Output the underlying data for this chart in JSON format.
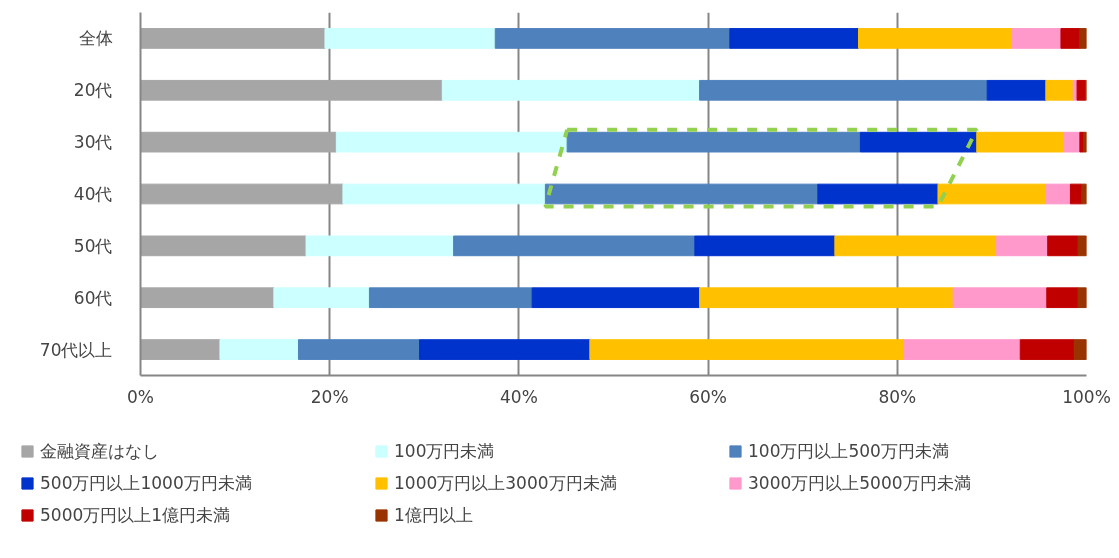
{
  "chart_data": {
    "type": "bar",
    "orientation": "horizontal",
    "stacked": true,
    "categories": [
      "全体",
      "20代",
      "30代",
      "40代",
      "50代",
      "60代",
      "70代以上"
    ],
    "series": [
      {
        "name": "金融資産はなし",
        "color": "#a6a6a6",
        "values": [
          19.5,
          31.9,
          20.7,
          21.4,
          17.5,
          14.1,
          8.4
        ]
      },
      {
        "name": "100万円未満",
        "color": "#ccffff",
        "values": [
          18.0,
          27.2,
          24.4,
          21.4,
          15.6,
          10.1,
          8.3
        ]
      },
      {
        "name": "100万円以上500万円未満",
        "color": "#4f81bd",
        "values": [
          24.8,
          30.4,
          31.0,
          28.8,
          25.5,
          17.2,
          12.8
        ]
      },
      {
        "name": "500万円以上1000万円未満",
        "color": "#0033cc",
        "values": [
          13.6,
          6.2,
          12.3,
          12.7,
          14.8,
          17.7,
          18.0
        ]
      },
      {
        "name": "1000万円以上3000万円未満",
        "color": "#ffc000",
        "values": [
          16.2,
          2.9,
          9.2,
          11.4,
          17.1,
          26.8,
          33.2
        ]
      },
      {
        "name": "3000万円以上5000万円未満",
        "color": "#ff99cc",
        "values": [
          5.2,
          0.4,
          1.7,
          2.6,
          5.4,
          9.9,
          12.3
        ]
      },
      {
        "name": "5000万円以上1億円未満",
        "color": "#c00000",
        "values": [
          2.0,
          0.9,
          0.4,
          1.2,
          3.2,
          3.3,
          5.7
        ]
      },
      {
        "name": "1億円以上",
        "color": "#993300",
        "values": [
          0.7,
          0.1,
          0.3,
          0.5,
          0.9,
          0.9,
          1.3
        ]
      }
    ],
    "xlim": [
      0,
      100
    ],
    "xticks": [
      {
        "value": 0,
        "label": "0%"
      },
      {
        "value": 20,
        "label": "20%"
      },
      {
        "value": 40,
        "label": "40%"
      },
      {
        "value": 60,
        "label": "60%"
      },
      {
        "value": 80,
        "label": "80%"
      },
      {
        "value": 100,
        "label": "100%"
      }
    ],
    "grid": "x",
    "legend": "bottom"
  }
}
